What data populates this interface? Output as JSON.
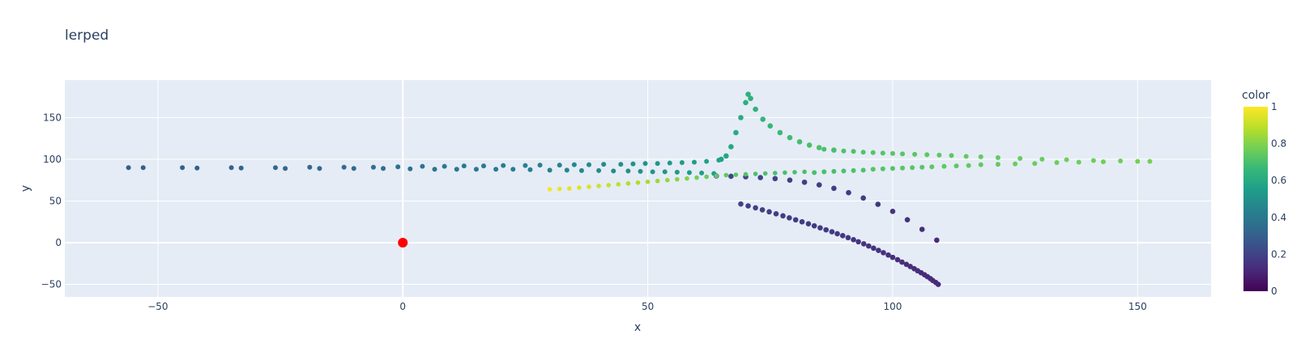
{
  "chart_data": {
    "type": "scatter",
    "title": "lerped",
    "xlabel": "x",
    "ylabel": "y",
    "xlim": [
      -69,
      165
    ],
    "ylim": [
      -65,
      195
    ],
    "xticks": [
      -50,
      0,
      50,
      100,
      150
    ],
    "yticks": [
      -50,
      0,
      50,
      100,
      150
    ],
    "x_tick_labels": [
      "−50",
      "0",
      "50",
      "100",
      "150"
    ],
    "y_tick_labels": [
      "−50",
      "0",
      "50",
      "100",
      "150"
    ],
    "grid": true,
    "colorbar": {
      "title": "color",
      "colorscale": "Viridis",
      "range": [
        0,
        1
      ],
      "ticks": [
        0,
        0.2,
        0.4,
        0.6,
        0.8,
        1
      ],
      "tick_labels": [
        "0",
        "0.2",
        "0.4",
        "0.6",
        "0.8",
        "1"
      ]
    },
    "series": [
      {
        "marker_size": 3.3,
        "points": [
          [
            109.3,
            -50,
            0.12
          ],
          [
            108.8,
            -47.7,
            0.12
          ],
          [
            108.2,
            -45.4,
            0.12
          ],
          [
            107.7,
            -43.1,
            0.12
          ],
          [
            107.1,
            -40.8,
            0.12
          ],
          [
            106.5,
            -38.5,
            0.12
          ],
          [
            105.8,
            -36.1,
            0.12
          ],
          [
            105.1,
            -33.7,
            0.13
          ],
          [
            104.4,
            -31.2,
            0.13
          ],
          [
            103.6,
            -28.6,
            0.13
          ],
          [
            102.8,
            -26,
            0.13
          ],
          [
            101.9,
            -23.3,
            0.13
          ],
          [
            101,
            -20.4,
            0.14
          ],
          [
            100,
            -17.6,
            0.14
          ],
          [
            99.1,
            -14.8,
            0.14
          ],
          [
            98.1,
            -12,
            0.14
          ],
          [
            97.1,
            -9.3,
            0.15
          ],
          [
            96.1,
            -6.6,
            0.15
          ],
          [
            95.1,
            -4,
            0.15
          ],
          [
            94.1,
            -1.4,
            0.15
          ],
          [
            93,
            1.1,
            0.15
          ],
          [
            92,
            3.6,
            0.16
          ],
          [
            90.9,
            6,
            0.16
          ],
          [
            89.8,
            8.4,
            0.16
          ],
          [
            88.7,
            10.7,
            0.16
          ],
          [
            87.6,
            13,
            0.17
          ],
          [
            86.4,
            15.4,
            0.17
          ],
          [
            85.2,
            17.8,
            0.17
          ],
          [
            84,
            20.2,
            0.17
          ],
          [
            82.8,
            22.6,
            0.17
          ],
          [
            81.5,
            25,
            0.18
          ],
          [
            80.2,
            27.4,
            0.18
          ],
          [
            78.9,
            29.8,
            0.18
          ],
          [
            77.6,
            32.2,
            0.18
          ],
          [
            76.2,
            34.6,
            0.18
          ],
          [
            74.8,
            37,
            0.19
          ],
          [
            73.4,
            39.4,
            0.19
          ],
          [
            72,
            41.8,
            0.19
          ],
          [
            70.5,
            44.1,
            0.19
          ],
          [
            69,
            46.4,
            0.2
          ]
        ]
      },
      {
        "marker_size": 3.3,
        "points": [
          [
            64,
            80,
            0.22
          ],
          [
            67,
            79.6,
            0.21
          ],
          [
            70,
            79,
            0.21
          ],
          [
            73,
            78.1,
            0.2
          ],
          [
            76,
            76.8,
            0.2
          ],
          [
            79,
            75,
            0.19
          ],
          [
            82,
            72.5,
            0.19
          ],
          [
            85,
            69.3,
            0.18
          ],
          [
            88,
            65.2,
            0.18
          ],
          [
            91,
            60,
            0.17
          ],
          [
            94,
            53.5,
            0.17
          ],
          [
            97,
            46,
            0.16
          ],
          [
            100,
            37.5,
            0.15
          ],
          [
            103,
            27.5,
            0.14
          ],
          [
            106,
            16,
            0.13
          ],
          [
            109,
            3,
            0.12
          ]
        ]
      },
      {
        "marker_size": 3,
        "points": [
          [
            -56,
            90,
            0.3
          ],
          [
            -53,
            90,
            0.3
          ],
          [
            -45,
            90,
            0.31
          ],
          [
            -42,
            89.5,
            0.31
          ],
          [
            -35,
            90,
            0.32
          ],
          [
            -33,
            89.5,
            0.32
          ],
          [
            -26,
            90,
            0.33
          ],
          [
            -24,
            89,
            0.33
          ],
          [
            -19,
            90.5,
            0.34
          ],
          [
            -17,
            89,
            0.34
          ],
          [
            -12,
            90.5,
            0.35
          ],
          [
            -10,
            89,
            0.35
          ],
          [
            -6,
            90.5,
            0.36
          ],
          [
            -4,
            89,
            0.36
          ],
          [
            -1,
            91,
            0.37
          ],
          [
            1.5,
            88.5,
            0.37
          ],
          [
            4,
            91.5,
            0.38
          ],
          [
            6.5,
            88,
            0.38
          ],
          [
            8.5,
            91.5,
            0.39
          ],
          [
            11,
            88,
            0.39
          ],
          [
            12.5,
            92,
            0.4
          ],
          [
            15,
            88,
            0.4
          ],
          [
            16.5,
            92,
            0.41
          ],
          [
            19,
            88,
            0.41
          ],
          [
            20.5,
            92.5,
            0.42
          ],
          [
            22.5,
            88,
            0.42
          ],
          [
            25,
            92.5,
            0.43
          ],
          [
            26,
            87.5,
            0.43
          ],
          [
            28,
            93,
            0.44
          ],
          [
            30,
            87,
            0.44
          ],
          [
            32,
            93,
            0.45
          ],
          [
            33.5,
            87,
            0.45
          ],
          [
            35,
            93.5,
            0.46
          ],
          [
            36.5,
            86.5,
            0.46
          ],
          [
            38,
            93.5,
            0.47
          ],
          [
            40,
            86.5,
            0.47
          ],
          [
            41,
            94,
            0.48
          ],
          [
            43,
            86,
            0.48
          ],
          [
            44.5,
            94,
            0.49
          ],
          [
            46,
            86,
            0.49
          ],
          [
            47,
            94.5,
            0.5
          ],
          [
            48.5,
            85.5,
            0.5
          ],
          [
            49.5,
            95,
            0.51
          ],
          [
            51,
            85,
            0.51
          ],
          [
            52,
            95,
            0.52
          ],
          [
            53.5,
            85,
            0.52
          ],
          [
            54.5,
            95.5,
            0.53
          ],
          [
            56,
            84.5,
            0.53
          ],
          [
            57,
            96,
            0.54
          ],
          [
            58.5,
            84,
            0.54
          ],
          [
            59.5,
            96.5,
            0.55
          ],
          [
            61,
            83.5,
            0.55
          ],
          [
            62,
            97.5,
            0.56
          ],
          [
            63.5,
            83,
            0.56
          ],
          [
            64.5,
            99,
            0.57
          ]
        ]
      },
      {
        "marker_size": 3.3,
        "points": [
          [
            65,
            100,
            0.57
          ],
          [
            66,
            104,
            0.58
          ],
          [
            67,
            115,
            0.59
          ],
          [
            68,
            132,
            0.6
          ],
          [
            69,
            150,
            0.61
          ],
          [
            70,
            168,
            0.62
          ],
          [
            70.5,
            178,
            0.63
          ],
          [
            71,
            173,
            0.63
          ],
          [
            72,
            160,
            0.64
          ],
          [
            73.5,
            148,
            0.65
          ],
          [
            75,
            140,
            0.66
          ],
          [
            77,
            132,
            0.67
          ],
          [
            79,
            126,
            0.68
          ],
          [
            81,
            121,
            0.69
          ],
          [
            83,
            117,
            0.7
          ],
          [
            85,
            114,
            0.71
          ],
          [
            88,
            111,
            0.72
          ]
        ]
      },
      {
        "marker_size": 3,
        "points": [
          [
            86,
            112,
            0.7
          ],
          [
            88,
            111,
            0.7
          ],
          [
            90,
            110,
            0.71
          ],
          [
            92,
            109.5,
            0.71
          ],
          [
            94,
            108.5,
            0.72
          ],
          [
            96,
            108,
            0.72
          ],
          [
            98,
            107.5,
            0.72
          ],
          [
            100,
            107,
            0.73
          ],
          [
            102,
            106.5,
            0.73
          ],
          [
            104.5,
            106,
            0.73
          ],
          [
            107,
            105.5,
            0.74
          ],
          [
            109.5,
            105,
            0.74
          ],
          [
            112,
            104.5,
            0.74
          ],
          [
            115,
            103.5,
            0.75
          ],
          [
            118,
            103,
            0.75
          ],
          [
            121.5,
            102,
            0.75
          ],
          [
            126,
            101,
            0.76
          ],
          [
            130.5,
            100,
            0.76
          ],
          [
            135.5,
            99.5,
            0.77
          ],
          [
            141,
            98.5,
            0.77
          ],
          [
            146.5,
            98,
            0.77
          ],
          [
            152.5,
            97.5,
            0.78
          ],
          [
            84,
            84,
            0.7
          ],
          [
            86,
            85,
            0.7
          ],
          [
            88,
            85.5,
            0.7
          ],
          [
            90,
            86,
            0.71
          ],
          [
            92,
            86.5,
            0.71
          ],
          [
            94,
            87,
            0.71
          ],
          [
            96,
            88,
            0.72
          ],
          [
            98,
            88.5,
            0.72
          ],
          [
            100,
            89,
            0.72
          ],
          [
            102,
            89.5,
            0.73
          ],
          [
            104,
            90,
            0.73
          ],
          [
            106,
            90.5,
            0.73
          ],
          [
            108,
            91,
            0.74
          ],
          [
            110.5,
            91.5,
            0.74
          ],
          [
            113,
            92,
            0.74
          ],
          [
            115.5,
            92.5,
            0.75
          ],
          [
            118,
            93.5,
            0.75
          ],
          [
            121.5,
            94,
            0.75
          ],
          [
            125,
            94.5,
            0.76
          ],
          [
            129,
            95,
            0.76
          ],
          [
            133.5,
            96,
            0.77
          ],
          [
            138,
            96.5,
            0.77
          ],
          [
            143,
            97,
            0.77
          ],
          [
            150,
            97.5,
            0.78
          ]
        ]
      },
      {
        "marker_size": 2.8,
        "points": [
          [
            30,
            64,
            0.98
          ],
          [
            32,
            64.5,
            0.97
          ],
          [
            34,
            65,
            0.96
          ],
          [
            36,
            66,
            0.95
          ],
          [
            38,
            67,
            0.94
          ],
          [
            40,
            68,
            0.92
          ],
          [
            42,
            69,
            0.91
          ],
          [
            44,
            70,
            0.9
          ],
          [
            46,
            71,
            0.88
          ],
          [
            48,
            72,
            0.87
          ],
          [
            50,
            73,
            0.86
          ],
          [
            52,
            74,
            0.84
          ],
          [
            54,
            75,
            0.83
          ],
          [
            56,
            76,
            0.81
          ],
          [
            58,
            77,
            0.8
          ],
          [
            60,
            78,
            0.78
          ],
          [
            62,
            79,
            0.76
          ],
          [
            64,
            80,
            0.75
          ],
          [
            66,
            81,
            0.74
          ],
          [
            68,
            81.5,
            0.73
          ],
          [
            70,
            82,
            0.72
          ],
          [
            72,
            82.5,
            0.71
          ],
          [
            74,
            83,
            0.71
          ],
          [
            76,
            83.5,
            0.7
          ],
          [
            78,
            84,
            0.7
          ],
          [
            80,
            84.5,
            0.7
          ],
          [
            82,
            85,
            0.7
          ]
        ]
      }
    ],
    "highlight_point": {
      "x": 0,
      "y": 0,
      "color": "#ff0000"
    }
  }
}
